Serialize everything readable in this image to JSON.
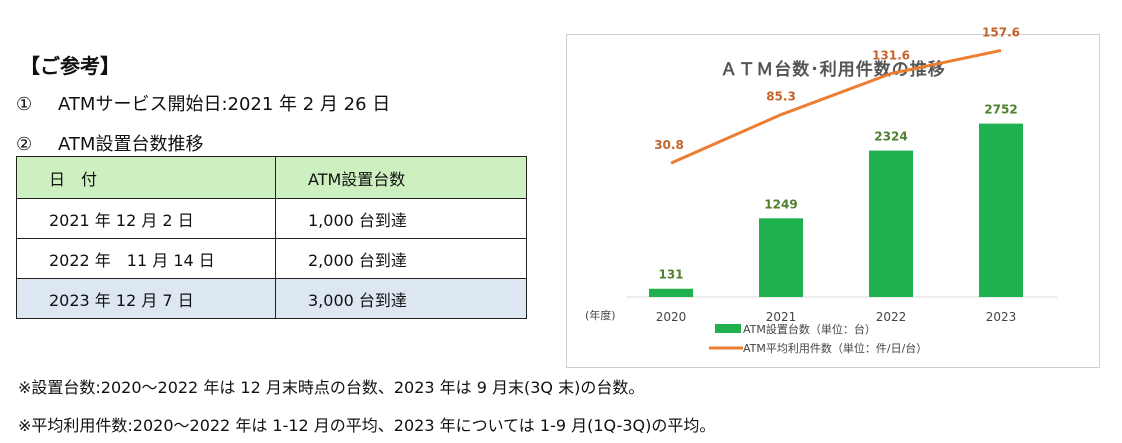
{
  "heading": "【ご参考】",
  "item1": {
    "num": "①",
    "text": "ATMサービス開始日:2021 年 2 月 26 日"
  },
  "item2": {
    "num": "②",
    "text": "ATM設置台数推移"
  },
  "table": {
    "headers": [
      "日　付",
      "ATM設置台数"
    ],
    "rows": [
      [
        "2021 年 12 月 2 日",
        "1,000 台到達"
      ],
      [
        "2022 年　11 月 14 日",
        "2,000 台到達"
      ],
      [
        "2023 年 12 月 7 日",
        "3,000 台到達"
      ]
    ]
  },
  "colors": {
    "bar": "#1fb14f",
    "line": "#ed7d31",
    "header_bg": "#cdf0c1",
    "last_row_bg": "#dde7f2"
  },
  "chart_data": {
    "type": "bar",
    "title": "ＡＴＭ台数･利用件数の推移",
    "xlabel": "(年度)",
    "categories": [
      "2020",
      "2021",
      "2022",
      "2023"
    ],
    "series": [
      {
        "name": "ATM設置台数（単位：台）",
        "type": "bar",
        "values": [
          131,
          1249,
          2324,
          2752
        ]
      },
      {
        "name": "ATM平均利用件数（単位：件/日/台）",
        "type": "line",
        "values": [
          30.8,
          85.3,
          131.6,
          157.6
        ]
      }
    ],
    "bar_ylim": [
      0,
      3000
    ],
    "line_ylim": [
      -120,
      175
    ],
    "legend": "bottom",
    "grid": false
  },
  "notes": [
    "※設置台数:2020～2022 年は 12 月末時点の台数、2023 年は 9 月末(3Q 末)の台数。",
    "※平均利用件数:2020～2022 年は 1-12 月の平均、2023 年については 1-9 月(1Q-3Q)の平均。"
  ]
}
